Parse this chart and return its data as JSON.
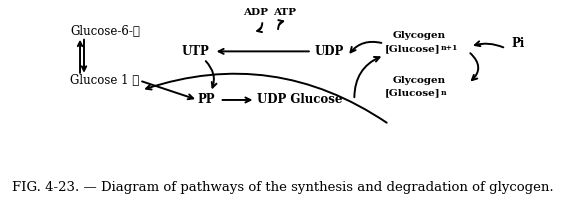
{
  "background_color": "#ffffff",
  "fig_caption": "FIG. 4-23. — Diagram of pathways of the synthesis and degradation of glycogen.",
  "caption_fontsize": 9.5,
  "text_color": "#000000",
  "arrow_color": "#000000",
  "line_width": 1.4,
  "labels": {
    "glucose6p": "Glucose-6-®",
    "glucose1p": "Glucose 1 ®",
    "utp": "UTP",
    "udp": "UDP",
    "adp": "ADP",
    "atp": "ATP",
    "pp": "PP",
    "udp_glucose": "UDP Glucose",
    "glycogen_n1_a": "Glycogen",
    "glycogen_n1_b": "[Glucose]",
    "glycogen_n1_c": "n+1",
    "glycogen_n_a": "Glycogen",
    "glycogen_n_b": "[Glucose]",
    "glycogen_n_c": "n",
    "pi": "Pi"
  }
}
